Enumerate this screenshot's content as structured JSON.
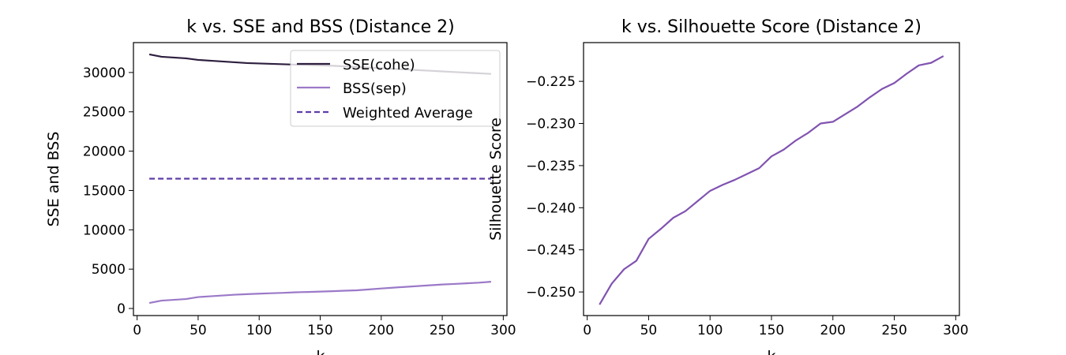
{
  "colors": {
    "sse": "#2d1e3e",
    "bss": "#9b79c8",
    "weighted": "#5e3ca8",
    "silhouette": "#8053b0"
  },
  "chart_data": [
    {
      "type": "line",
      "title": "k vs. SSE and BSS (Distance 2)",
      "xlabel": "k",
      "ylabel": "SSE and BSS",
      "xlim": [
        -3,
        303
      ],
      "ylim": [
        -900,
        33800
      ],
      "xticks": [
        0,
        50,
        100,
        150,
        200,
        250,
        300
      ],
      "yticks": [
        0,
        5000,
        10000,
        15000,
        20000,
        25000,
        30000
      ],
      "grid": false,
      "legend_position": "upper-right",
      "x": [
        10,
        20,
        30,
        40,
        50,
        60,
        70,
        80,
        90,
        100,
        110,
        120,
        130,
        140,
        150,
        160,
        170,
        180,
        190,
        200,
        210,
        220,
        230,
        240,
        250,
        260,
        270,
        280,
        290
      ],
      "series": [
        {
          "name": "SSE(cohe)",
          "style": "solid",
          "values": [
            32300,
            32000,
            31900,
            31800,
            31600,
            31500,
            31400,
            31300,
            31200,
            31150,
            31100,
            31050,
            31000,
            30950,
            30900,
            30850,
            30780,
            30700,
            30620,
            30540,
            30460,
            30380,
            30300,
            30220,
            30140,
            30060,
            29980,
            29900,
            29820
          ]
        },
        {
          "name": "BSS(sep)",
          "style": "solid",
          "values": [
            700,
            1000,
            1100,
            1200,
            1450,
            1550,
            1650,
            1750,
            1820,
            1880,
            1940,
            1990,
            2060,
            2100,
            2150,
            2200,
            2260,
            2310,
            2420,
            2540,
            2650,
            2750,
            2850,
            2950,
            3050,
            3120,
            3200,
            3280,
            3400
          ]
        },
        {
          "name": "Weighted Average",
          "style": "dashed",
          "values": [
            16500,
            16500,
            16500,
            16500,
            16500,
            16500,
            16500,
            16500,
            16500,
            16500,
            16500,
            16500,
            16500,
            16500,
            16500,
            16500,
            16500,
            16500,
            16500,
            16500,
            16500,
            16500,
            16500,
            16500,
            16500,
            16500,
            16500,
            16500,
            16500
          ]
        }
      ]
    },
    {
      "type": "line",
      "title": "k vs. Silhouette Score (Distance 2)",
      "xlabel": "k",
      "ylabel": "Silhouette Score",
      "xlim": [
        -3,
        303
      ],
      "ylim": [
        -0.2528,
        -0.2204
      ],
      "xticks": [
        0,
        50,
        100,
        150,
        200,
        250,
        300
      ],
      "yticks": [
        -0.25,
        -0.245,
        -0.24,
        -0.235,
        -0.23,
        -0.225
      ],
      "ytick_labels": [
        "−0.250",
        "−0.245",
        "−0.240",
        "−0.235",
        "−0.230",
        "−0.225"
      ],
      "grid": false,
      "x": [
        10,
        20,
        30,
        40,
        50,
        60,
        70,
        80,
        90,
        100,
        110,
        120,
        130,
        140,
        150,
        160,
        170,
        180,
        190,
        200,
        210,
        220,
        230,
        240,
        250,
        260,
        270,
        280,
        290
      ],
      "series": [
        {
          "values": [
            -0.2515,
            -0.249,
            -0.2473,
            -0.2463,
            -0.2437,
            -0.2425,
            -0.2412,
            -0.2404,
            -0.2392,
            -0.238,
            -0.2373,
            -0.2367,
            -0.236,
            -0.2353,
            -0.2339,
            -0.2331,
            -0.232,
            -0.2311,
            -0.23,
            -0.2298,
            -0.2289,
            -0.228,
            -0.2269,
            -0.2259,
            -0.2252,
            -0.2241,
            -0.2231,
            -0.2228,
            -0.222
          ]
        }
      ]
    }
  ]
}
